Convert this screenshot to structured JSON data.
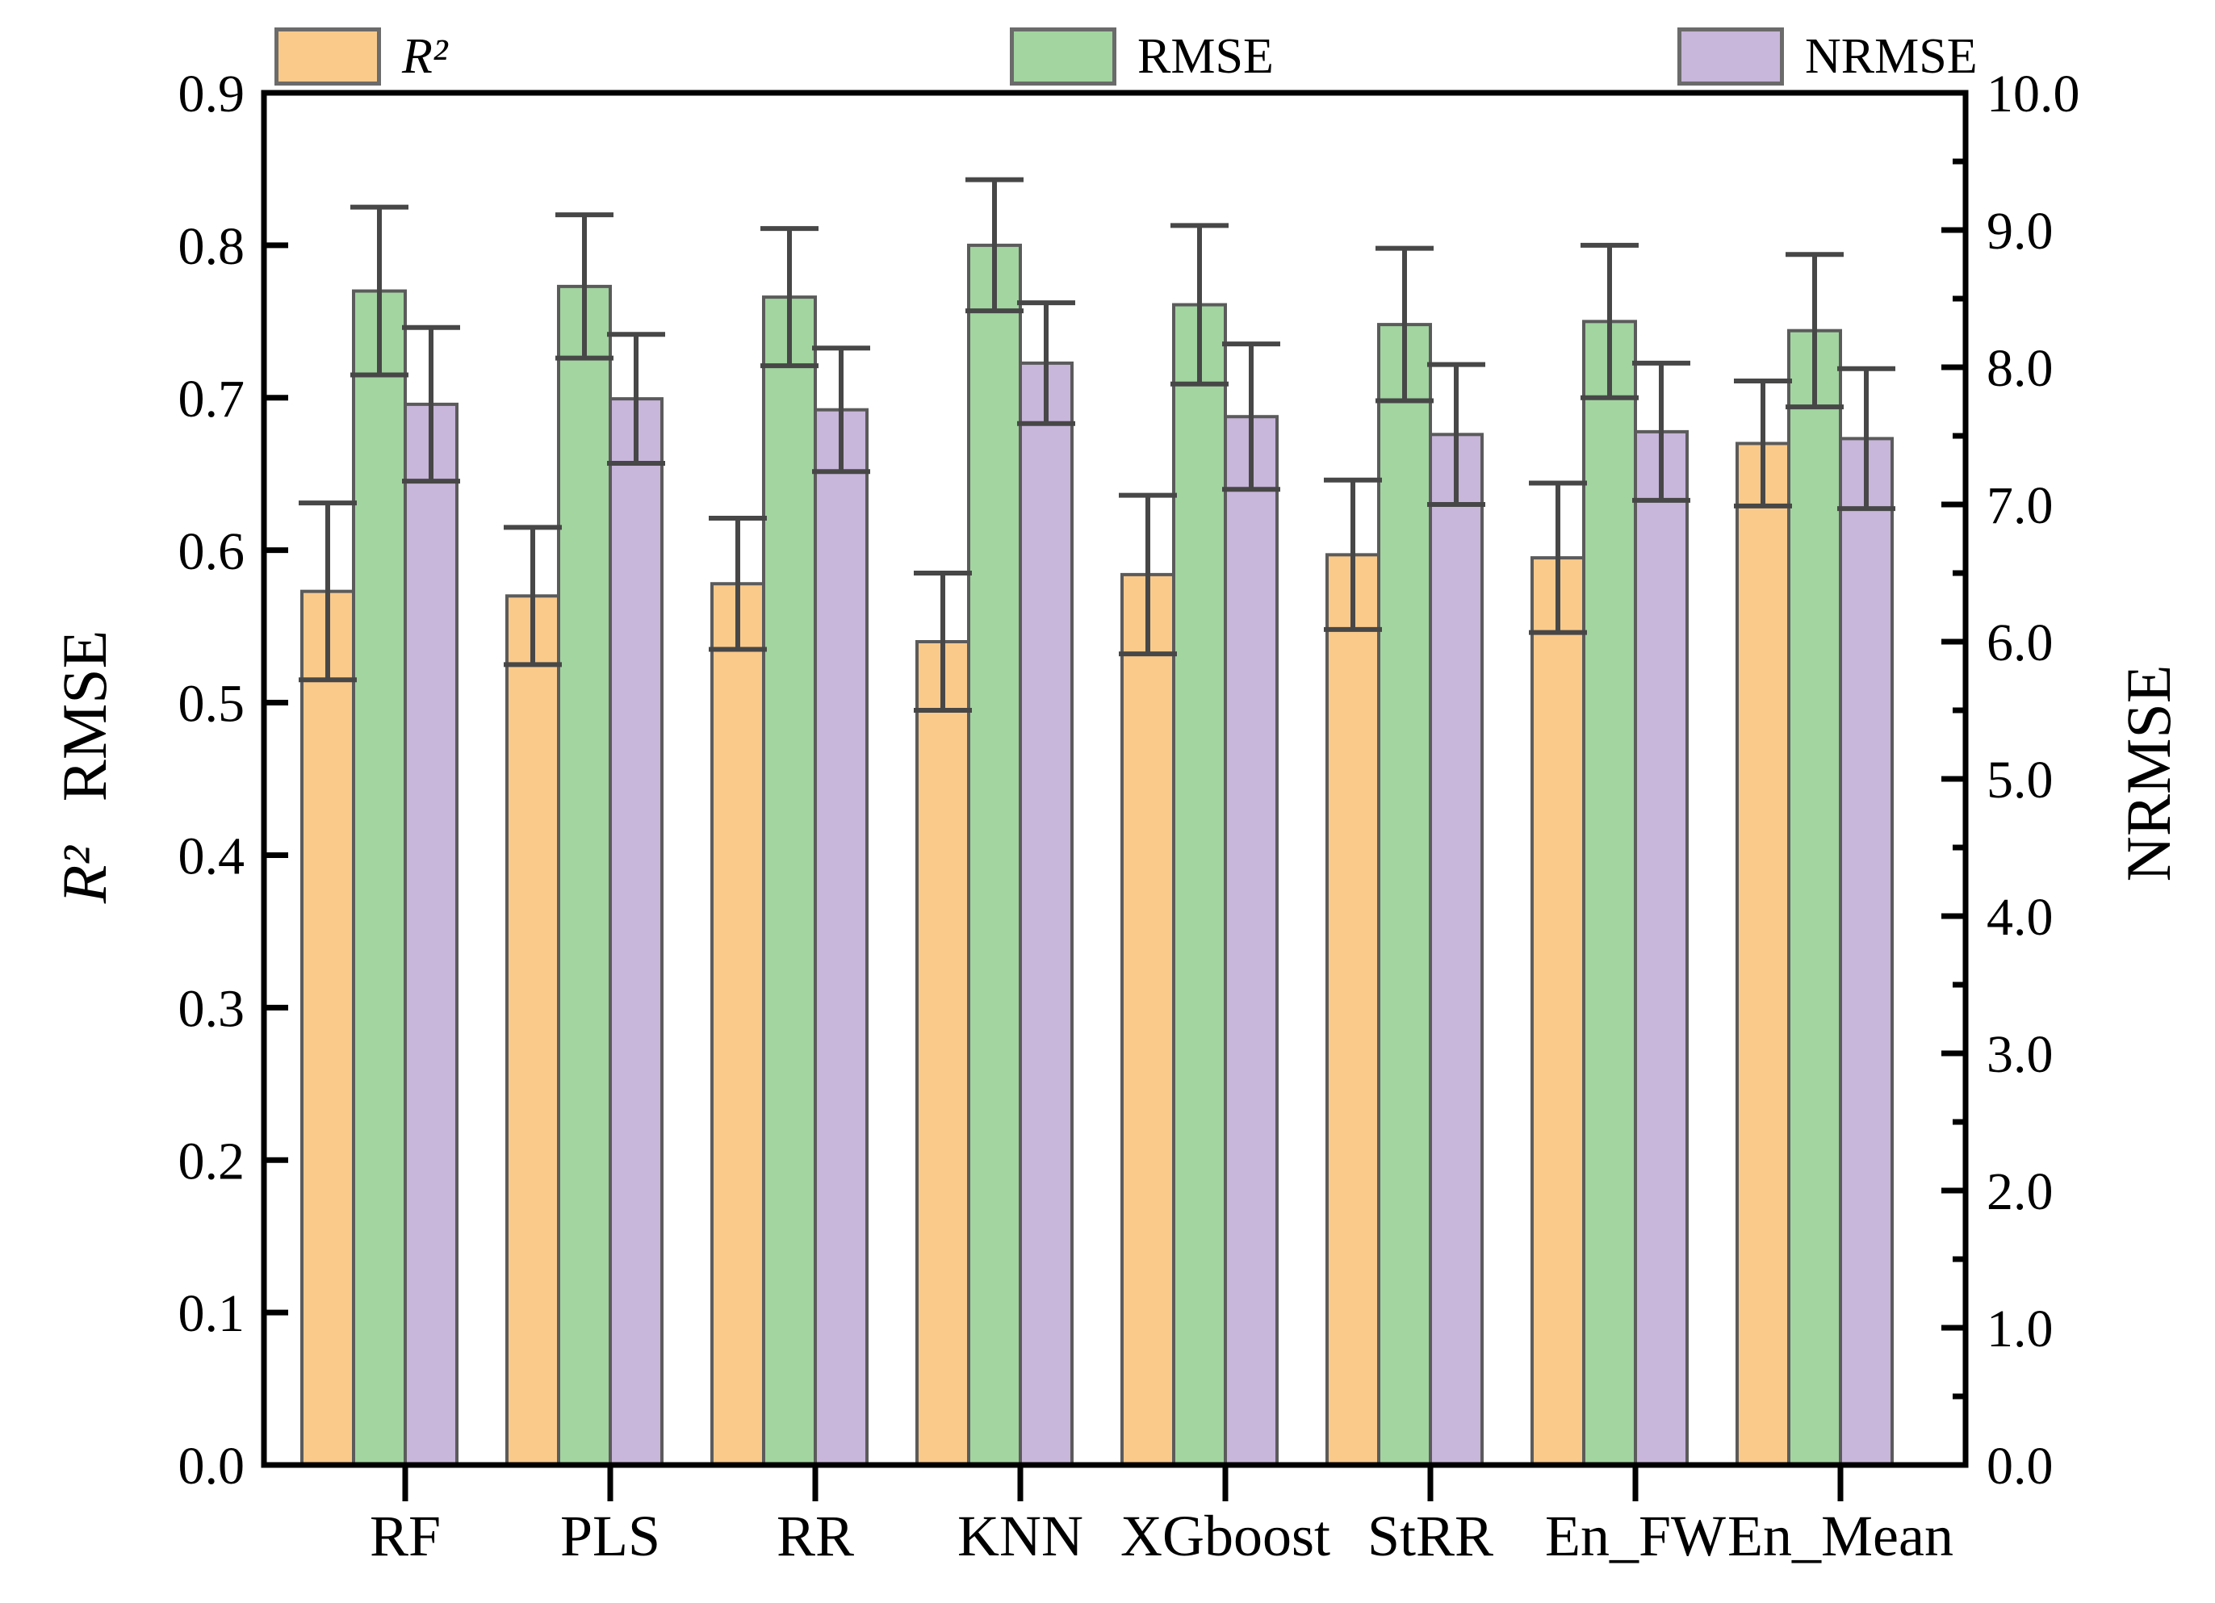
{
  "chart_data": {
    "type": "bar",
    "title": "",
    "grid": false,
    "legend_position": "top",
    "categories": [
      "RF",
      "PLS",
      "RR",
      "KNN",
      "XGboost",
      "StRR",
      "En_FW",
      "En_Mean"
    ],
    "series": [
      {
        "name": "R²",
        "axis": "left",
        "color": "#FACA8B",
        "values": [
          0.573,
          0.57,
          0.578,
          0.54,
          0.584,
          0.597,
          0.595,
          0.67
        ],
        "errors": [
          0.058,
          0.045,
          0.043,
          0.045,
          0.052,
          0.049,
          0.049,
          0.041
        ]
      },
      {
        "name": "RMSE",
        "axis": "left",
        "color": "#A2D5A0",
        "values": [
          0.77,
          0.773,
          0.766,
          0.8,
          0.761,
          0.748,
          0.75,
          0.744
        ],
        "errors": [
          0.055,
          0.047,
          0.045,
          0.043,
          0.052,
          0.05,
          0.05,
          0.05
        ]
      },
      {
        "name": "NRMSE",
        "axis": "right",
        "color": "#C8B6DB",
        "values": [
          7.73,
          7.77,
          7.69,
          8.03,
          7.64,
          7.51,
          7.53,
          7.48
        ],
        "errors": [
          0.56,
          0.47,
          0.45,
          0.44,
          0.53,
          0.51,
          0.5,
          0.51
        ]
      }
    ],
    "left_axis": {
      "label_math": "R²",
      "label": "RMSE",
      "min": 0.0,
      "max": 0.9,
      "step": 0.1,
      "tick_labels": [
        "0.0",
        "0.1",
        "0.2",
        "0.3",
        "0.4",
        "0.5",
        "0.6",
        "0.7",
        "0.8",
        "0.9"
      ]
    },
    "right_axis": {
      "label": "NRMSE",
      "min": 0.0,
      "max": 10.0,
      "step": 1.0,
      "minor_step": 0.5,
      "tick_labels": [
        "0.0",
        "1.0",
        "2.0",
        "3.0",
        "4.0",
        "5.0",
        "6.0",
        "7.0",
        "8.0",
        "9.0",
        "10.0"
      ]
    },
    "x_axis": {
      "tick_labels": [
        "RF",
        "PLS",
        "RR",
        "KNN",
        "XGboost",
        "StRR",
        "En_FW",
        "En_Mean"
      ]
    },
    "legend": [
      {
        "label": "R²",
        "color": "#FACA8B"
      },
      {
        "label": "RMSE",
        "color": "#A2D5A0"
      },
      {
        "label": "NRMSE",
        "color": "#C8B6DB"
      }
    ],
    "styles": {
      "axis_color": "#000000",
      "bar_edge_color": "#5B5B5B",
      "error_bar_color": "#474747",
      "legend_edge_color": "#6b6b6b",
      "background": "#ffffff"
    }
  }
}
